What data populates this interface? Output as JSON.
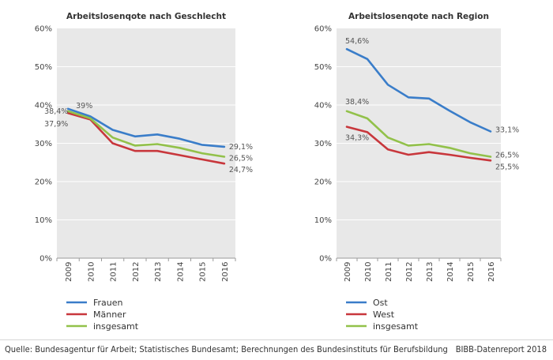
{
  "footer": {
    "source": "Quelle: Bundesagentur für Arbeit; Statistisches Bundesamt; Berechnungen des Bundesinstituts für Berufsbildung",
    "credit": "BIBB-Datenreport 2018"
  },
  "colors": {
    "blue": "#3a7dc9",
    "red": "#c8373c",
    "green": "#92c14a",
    "plot_bg": "#e8e8e8",
    "grid": "#ffffff"
  },
  "chart_data": [
    {
      "type": "line",
      "title": "Arbeitslosenqote nach Geschlecht",
      "categories": [
        "2009",
        "2010",
        "2011",
        "2012",
        "2013",
        "2014",
        "2015",
        "2016"
      ],
      "ylim": [
        0,
        60
      ],
      "yticks": [
        "0%",
        "10%",
        "20%",
        "30%",
        "40%",
        "50%",
        "60%"
      ],
      "grid": true,
      "legend": "bottom",
      "series": [
        {
          "name": "Frauen",
          "color": "#3a7dc9",
          "values": [
            39.0,
            37.0,
            33.5,
            31.8,
            32.3,
            31.2,
            29.6,
            29.1
          ]
        },
        {
          "name": "Männer",
          "color": "#c8373c",
          "values": [
            37.9,
            36.2,
            30.0,
            28.0,
            28.0,
            26.9,
            25.8,
            24.7
          ]
        },
        {
          "name": "insgesamt",
          "color": "#92c14a",
          "values": [
            38.4,
            36.5,
            31.5,
            29.4,
            29.8,
            28.8,
            27.4,
            26.5
          ]
        }
      ],
      "labels": [
        {
          "series": 0,
          "index": 0,
          "text": "39%"
        },
        {
          "series": 2,
          "index": 0,
          "text": "38,4%"
        },
        {
          "series": 1,
          "index": 0,
          "text": "37,9%"
        },
        {
          "series": 0,
          "index": 7,
          "text": "29,1%"
        },
        {
          "series": 2,
          "index": 7,
          "text": "26,5%"
        },
        {
          "series": 1,
          "index": 7,
          "text": "24,7%"
        }
      ]
    },
    {
      "type": "line",
      "title": "Arbeitslosenqote nach Region",
      "categories": [
        "2009",
        "2010",
        "2011",
        "2012",
        "2013",
        "2014",
        "2015",
        "2016"
      ],
      "ylim": [
        0,
        60
      ],
      "yticks": [
        "0%",
        "10%",
        "20%",
        "30%",
        "40%",
        "50%",
        "60%"
      ],
      "grid": true,
      "legend": "bottom",
      "series": [
        {
          "name": "Ost",
          "color": "#3a7dc9",
          "values": [
            54.6,
            52.0,
            45.3,
            42.0,
            41.7,
            38.5,
            35.5,
            33.1
          ]
        },
        {
          "name": "West",
          "color": "#c8373c",
          "values": [
            34.3,
            32.9,
            28.4,
            27.0,
            27.7,
            27.0,
            26.2,
            25.5
          ]
        },
        {
          "name": "insgesamt",
          "color": "#92c14a",
          "values": [
            38.4,
            36.5,
            31.5,
            29.4,
            29.8,
            28.8,
            27.4,
            26.5
          ]
        }
      ],
      "labels": [
        {
          "series": 0,
          "index": 0,
          "text": "54,6%"
        },
        {
          "series": 2,
          "index": 0,
          "text": "38,4%"
        },
        {
          "series": 1,
          "index": 0,
          "text": "34,3%"
        },
        {
          "series": 0,
          "index": 7,
          "text": "33,1%"
        },
        {
          "series": 2,
          "index": 7,
          "text": "26,5%"
        },
        {
          "series": 1,
          "index": 7,
          "text": "25,5%"
        }
      ]
    }
  ]
}
